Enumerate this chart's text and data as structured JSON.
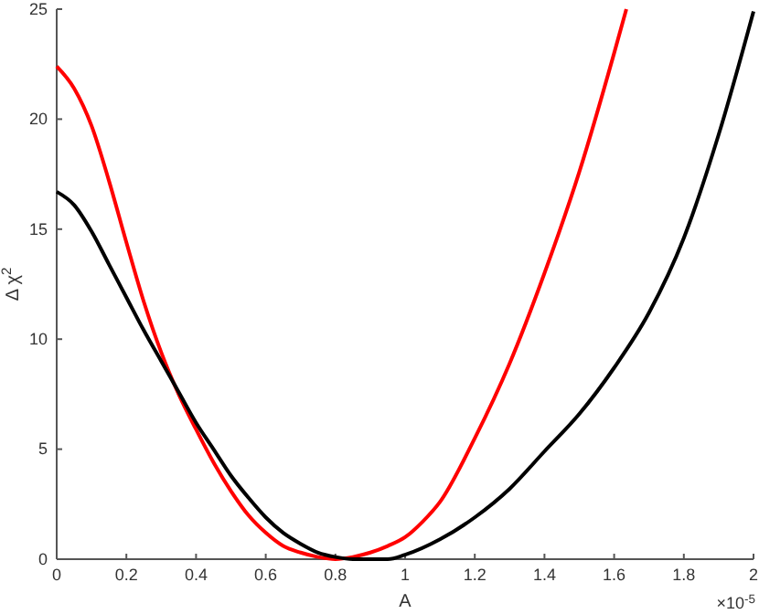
{
  "chart_data": {
    "type": "line",
    "xlabel": "A",
    "ylabel": "Δ χ$^{2}$",
    "annotations": [
      "×10$^{-5}$"
    ],
    "xlim": [
      0,
      2
    ],
    "ylim": [
      0,
      25
    ],
    "xticks": [
      0,
      0.2,
      0.4,
      0.6,
      0.8,
      1,
      1.2,
      1.4,
      1.6,
      1.8,
      2
    ],
    "yticks": [
      0,
      5,
      10,
      15,
      20,
      25
    ],
    "grid": false,
    "marker": "none",
    "line_style": "solid",
    "series": [
      {
        "color": "#ff0000",
        "x": [
          0,
          0.05,
          0.1,
          0.15,
          0.2,
          0.25,
          0.3,
          0.35,
          0.4,
          0.45,
          0.5,
          0.55,
          0.6,
          0.65,
          0.7,
          0.75,
          0.8,
          0.85,
          0.9,
          0.95,
          1,
          1.05,
          1.1,
          1.2,
          1.3,
          1.4,
          1.5,
          1.6,
          1.635
        ],
        "values": [
          22.4,
          21.4,
          19.7,
          17.2,
          14.4,
          11.7,
          9.4,
          7.5,
          5.9,
          4.4,
          3.1,
          2,
          1.2,
          0.6,
          0.3,
          0.1,
          0,
          0.1,
          0.3,
          0.6,
          1,
          1.7,
          2.6,
          5.5,
          8.9,
          13,
          17.6,
          23,
          25
        ]
      },
      {
        "color": "#000000",
        "x": [
          0,
          0.05,
          0.1,
          0.15,
          0.2,
          0.25,
          0.3,
          0.35,
          0.4,
          0.45,
          0.5,
          0.55,
          0.6,
          0.65,
          0.7,
          0.75,
          0.8,
          0.85,
          0.9,
          0.95,
          1,
          1.1,
          1.2,
          1.3,
          1.4,
          1.5,
          1.6,
          1.7,
          1.8,
          1.9,
          2
        ],
        "values": [
          16.7,
          16.1,
          14.9,
          13.4,
          11.9,
          10.4,
          9,
          7.6,
          6.2,
          5,
          3.8,
          2.8,
          1.9,
          1.2,
          0.7,
          0.3,
          0.1,
          0,
          0,
          0,
          0.2,
          0.9,
          1.9,
          3.2,
          4.9,
          6.6,
          8.7,
          11.2,
          14.6,
          19.3,
          24.9
        ]
      }
    ]
  }
}
